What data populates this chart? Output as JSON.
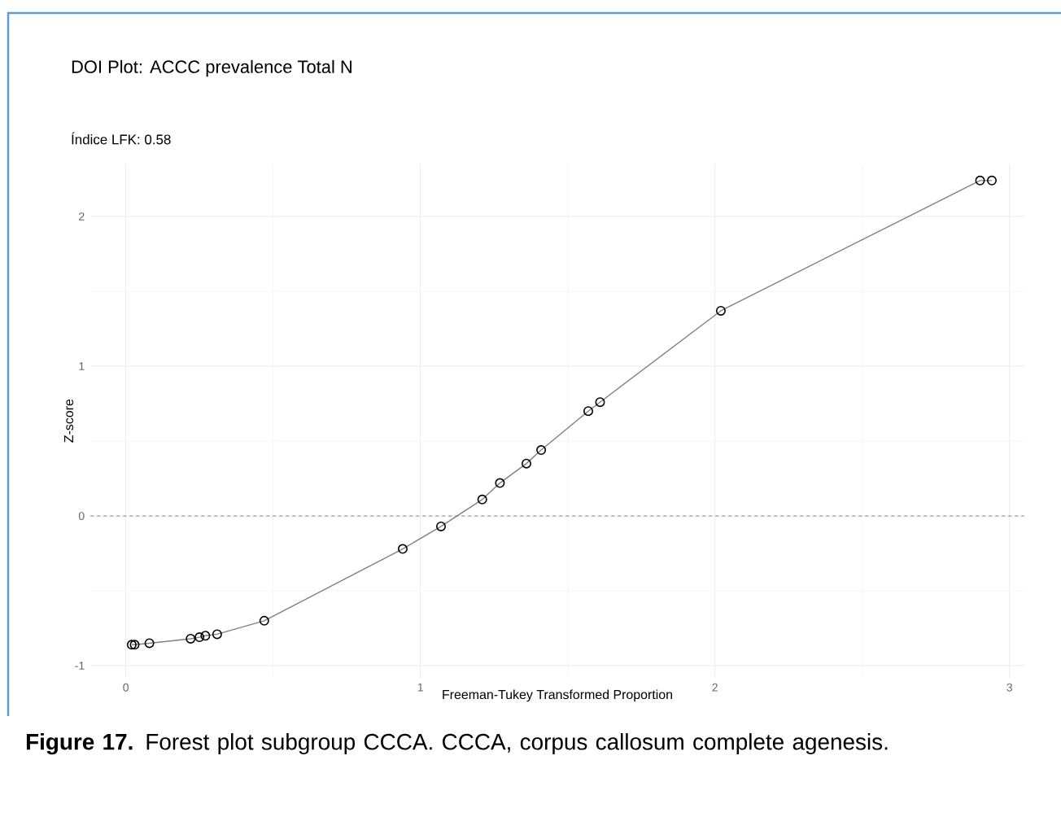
{
  "chart_data": {
    "type": "line",
    "title": "DOI Plot: ACCC prevalence Total N",
    "subtitle": "Índice LFK: 0.58",
    "xlabel": "Freeman-Tukey Transformed Proportion",
    "ylabel": "Z-score",
    "annotations": [
      "**Figure 17.** Forest plot subgroup CCCA. CCCA, corpus callosum complete agenesis."
    ],
    "series": [
      {
        "color": "#808080",
        "x": [
          0.02,
          0.03,
          0.08,
          0.22,
          0.25,
          0.27,
          0.31,
          0.47,
          0.94,
          1.07,
          1.21,
          1.27,
          1.36,
          1.41,
          1.57,
          1.61,
          2.02,
          2.9,
          2.94
        ],
        "values": [
          -0.86,
          -0.86,
          -0.85,
          -0.82,
          -0.81,
          -0.8,
          -0.79,
          -0.7,
          -0.22,
          -0.07,
          0.11,
          0.22,
          0.35,
          0.44,
          0.7,
          0.76,
          1.37,
          2.24,
          2.24
        ]
      }
    ],
    "marker": "circle",
    "line_style": "solid",
    "grid": true,
    "xlim": [
      -0.12,
      3.05
    ],
    "ylim": [
      -1.08,
      2.35
    ],
    "xticks": [
      0,
      1,
      2,
      3
    ],
    "yticks": [
      -1,
      0,
      1,
      2
    ],
    "ref_lines": [
      {
        "axis": "y",
        "value": 0,
        "color": "#999999",
        "line_style": "dashed"
      }
    ]
  }
}
